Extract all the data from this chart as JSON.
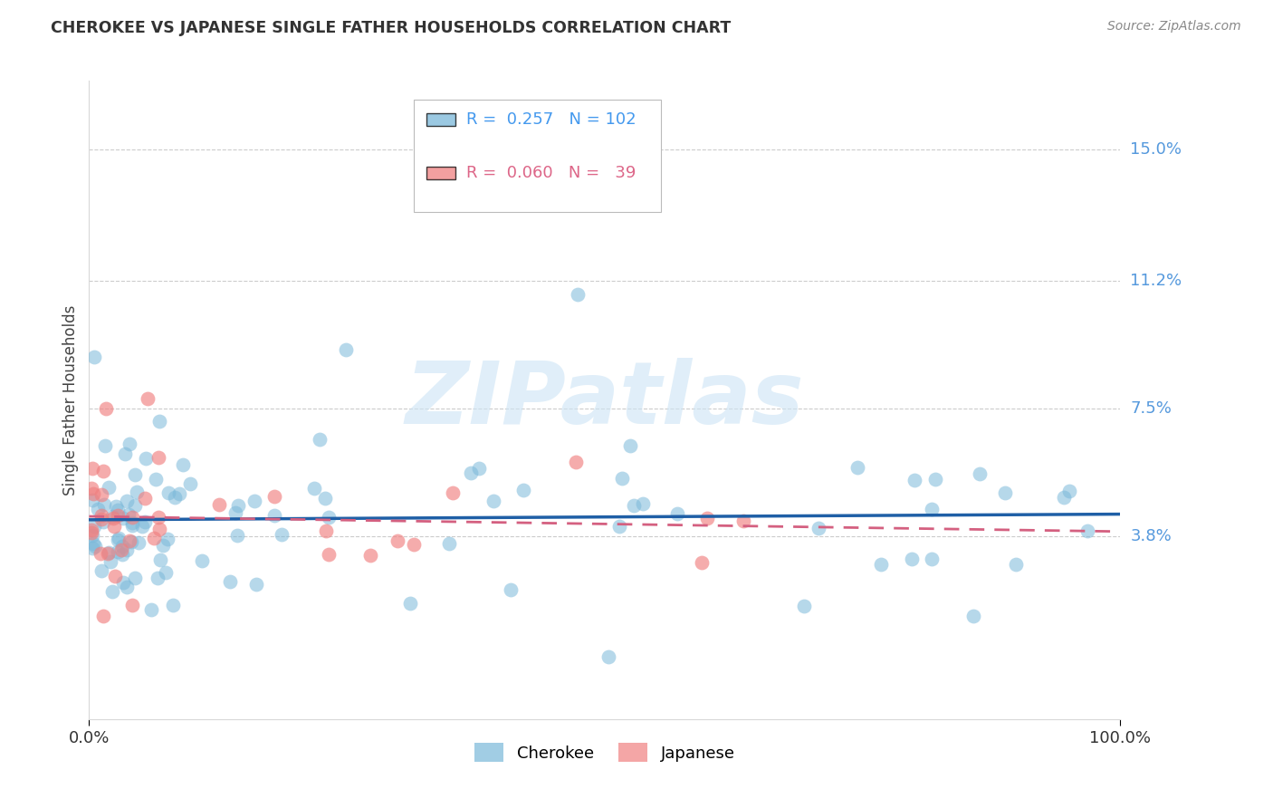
{
  "title": "CHEROKEE VS JAPANESE SINGLE FATHER HOUSEHOLDS CORRELATION CHART",
  "source": "Source: ZipAtlas.com",
  "ylabel": "Single Father Households",
  "ytick_values": [
    3.8,
    7.5,
    11.2,
    15.0
  ],
  "xlim": [
    0.0,
    100.0
  ],
  "ylim": [
    -1.5,
    17.0
  ],
  "cherokee_color": "#7ab8d9",
  "japanese_color": "#f08080",
  "cherokee_line_color": "#1f5fa6",
  "japanese_line_color": "#d46080",
  "background_color": "#ffffff",
  "watermark_text": "ZIPatlas",
  "watermark_color": "#cce4f5",
  "cherokee_R": 0.257,
  "cherokee_N": 102,
  "japanese_R": 0.06,
  "japanese_N": 39,
  "title_color": "#333333",
  "source_color": "#888888",
  "ytick_color": "#5599dd",
  "grid_color": "#cccccc",
  "legend_text_cherokee_color": "#4499ee",
  "legend_text_japanese_color": "#dd6688"
}
